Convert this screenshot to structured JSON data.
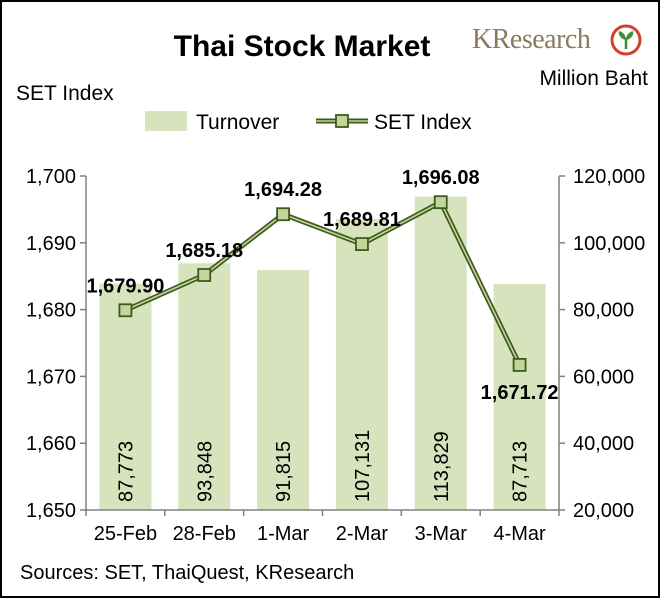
{
  "title": "Thai Stock Market",
  "brand": {
    "name": "KResearch",
    "logo_icon": "kasikorn-leaf-logo-icon",
    "logo_color": "#d6402b",
    "leaf_color": "#3f8f3a"
  },
  "left_axis_title": "SET Index",
  "right_axis_title": "Million Baht",
  "source": "Sources: SET, ThaiQuest, KResearch",
  "colors": {
    "bar": "#d6e3bc",
    "line": "#3d5b1f",
    "marker_fill": "#c2d69b",
    "axis": "#808080"
  },
  "chart_data": {
    "type": "bar+line",
    "categories": [
      "25-Feb",
      "28-Feb",
      "1-Mar",
      "2-Mar",
      "3-Mar",
      "4-Mar"
    ],
    "series": [
      {
        "name": "Turnover",
        "type": "bar",
        "axis": "right",
        "values": [
          87773,
          93848,
          91815,
          107131,
          113829,
          87713
        ],
        "labels": [
          "87,773",
          "93,848",
          "91,815",
          "107,131",
          "113,829",
          "87,713"
        ]
      },
      {
        "name": "SET Index",
        "type": "line",
        "axis": "left",
        "values": [
          1679.9,
          1685.18,
          1694.28,
          1689.81,
          1696.08,
          1671.72
        ],
        "labels": [
          "1,679.90",
          "1,685.18",
          "1,694.28",
          "1,689.81",
          "1,696.08",
          "1,671.72"
        ]
      }
    ],
    "left_axis": {
      "min": 1650,
      "max": 1700,
      "ticks": [
        "1,650",
        "1,660",
        "1,670",
        "1,680",
        "1,690",
        "1,700"
      ]
    },
    "right_axis": {
      "min": 20000,
      "max": 120000,
      "ticks": [
        "20,000",
        "40,000",
        "60,000",
        "80,000",
        "100,000",
        "120,000"
      ]
    },
    "legend_position": "top",
    "grid": false
  }
}
